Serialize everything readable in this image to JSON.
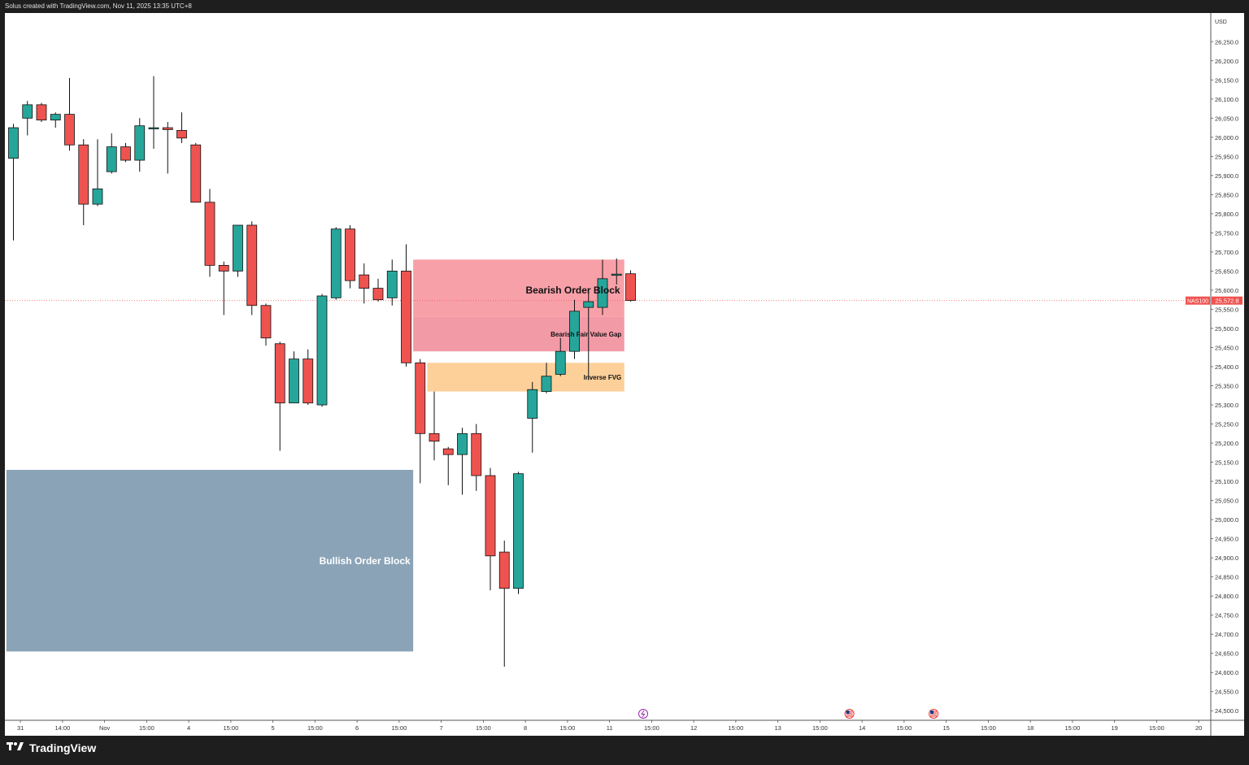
{
  "header": {
    "attribution": "Solus created with TradingView.com, Nov 11, 2025 13:35 UTC+8"
  },
  "footer": {
    "brand": "TradingView",
    "logo_icon": "tradingview-logo-icon"
  },
  "colors": {
    "up": "#26a69a",
    "down": "#ef5350",
    "bearish_ob": "#f8a0a8",
    "bearish_fvg": "#f29aa6",
    "inverse_fvg": "#fdd09a",
    "bullish_ob": "#8aa3b7",
    "last_price": "#ef5350"
  },
  "chart_data": {
    "type": "candlestick",
    "symbol": "NAS100",
    "currency": "USD",
    "last_price": 25572.8,
    "last_price_label": "25,572.8",
    "ylim": [
      24475,
      26325
    ],
    "y_ticks": [
      "24,500.0",
      "24,550.0",
      "24,600.0",
      "24,650.0",
      "24,700.0",
      "24,750.0",
      "24,800.0",
      "24,850.0",
      "24,900.0",
      "24,950.0",
      "25,000.0",
      "25,050.0",
      "25,100.0",
      "25,150.0",
      "25,200.0",
      "25,250.0",
      "25,300.0",
      "25,350.0",
      "25,400.0",
      "25,450.0",
      "25,500.0",
      "25,550.0",
      "25,600.0",
      "25,650.0",
      "25,700.0",
      "25,750.0",
      "25,800.0",
      "25,850.0",
      "25,900.0",
      "25,950.0",
      "26,000.0",
      "26,050.0",
      "26,100.0",
      "26,150.0",
      "26,200.0",
      "26,250.0"
    ],
    "x_ticks": [
      {
        "label": "31",
        "bar": 0.5
      },
      {
        "label": "14:00",
        "bar": 3.5
      },
      {
        "label": "Nov",
        "bar": 6.5
      },
      {
        "label": "15:00",
        "bar": 9.5
      },
      {
        "label": "4",
        "bar": 12.5
      },
      {
        "label": "15:00",
        "bar": 15.5
      },
      {
        "label": "5",
        "bar": 18.5
      },
      {
        "label": "15:00",
        "bar": 21.5
      },
      {
        "label": "6",
        "bar": 24.5
      },
      {
        "label": "15:00",
        "bar": 27.5
      },
      {
        "label": "7",
        "bar": 30.5
      },
      {
        "label": "15:00",
        "bar": 33.5
      },
      {
        "label": "8",
        "bar": 36.5
      },
      {
        "label": "15:00",
        "bar": 39.5
      },
      {
        "label": "11",
        "bar": 42.5
      },
      {
        "label": "15:00",
        "bar": 45.5
      },
      {
        "label": "12",
        "bar": 48.5
      },
      {
        "label": "15:00",
        "bar": 51.5
      },
      {
        "label": "13",
        "bar": 54.5
      },
      {
        "label": "15:00",
        "bar": 57.5
      },
      {
        "label": "14",
        "bar": 60.5
      },
      {
        "label": "15:00",
        "bar": 63.5
      },
      {
        "label": "15",
        "bar": 66.5
      },
      {
        "label": "15:00",
        "bar": 69.5
      },
      {
        "label": "18",
        "bar": 72.5
      },
      {
        "label": "15:00",
        "bar": 75.5
      },
      {
        "label": "19",
        "bar": 78.5
      },
      {
        "label": "15:00",
        "bar": 81.5
      },
      {
        "label": "20",
        "bar": 84.5
      }
    ],
    "candles": [
      {
        "o": 25945,
        "h": 26035,
        "l": 25730,
        "c": 26025
      },
      {
        "o": 26050,
        "h": 26095,
        "l": 26005,
        "c": 26085
      },
      {
        "o": 26085,
        "h": 26090,
        "l": 26040,
        "c": 26045
      },
      {
        "o": 26045,
        "h": 26065,
        "l": 26025,
        "c": 26060
      },
      {
        "o": 26060,
        "h": 26155,
        "l": 25965,
        "c": 25980
      },
      {
        "o": 25980,
        "h": 25995,
        "l": 25770,
        "c": 25825
      },
      {
        "o": 25825,
        "h": 25995,
        "l": 25820,
        "c": 25865
      },
      {
        "o": 25910,
        "h": 26010,
        "l": 25905,
        "c": 25975
      },
      {
        "o": 25975,
        "h": 25985,
        "l": 25935,
        "c": 25940
      },
      {
        "o": 25940,
        "h": 26050,
        "l": 25910,
        "c": 26030
      },
      {
        "o": 26025,
        "h": 26160,
        "l": 25970,
        "c": 26025
      },
      {
        "o": 26025,
        "h": 26040,
        "l": 25905,
        "c": 26020
      },
      {
        "o": 26018,
        "h": 26065,
        "l": 25985,
        "c": 25998
      },
      {
        "o": 25980,
        "h": 25985,
        "l": 25830,
        "c": 25830
      },
      {
        "o": 25830,
        "h": 25865,
        "l": 25635,
        "c": 25665
      },
      {
        "o": 25665,
        "h": 25675,
        "l": 25535,
        "c": 25650
      },
      {
        "o": 25650,
        "h": 25770,
        "l": 25635,
        "c": 25770
      },
      {
        "o": 25770,
        "h": 25780,
        "l": 25535,
        "c": 25560
      },
      {
        "o": 25560,
        "h": 25565,
        "l": 25455,
        "c": 25475
      },
      {
        "o": 25460,
        "h": 25465,
        "l": 25180,
        "c": 25305
      },
      {
        "o": 25305,
        "h": 25440,
        "l": 25305,
        "c": 25420
      },
      {
        "o": 25420,
        "h": 25445,
        "l": 25300,
        "c": 25305
      },
      {
        "o": 25300,
        "h": 25590,
        "l": 25295,
        "c": 25585
      },
      {
        "o": 25580,
        "h": 25765,
        "l": 25575,
        "c": 25760
      },
      {
        "o": 25760,
        "h": 25770,
        "l": 25605,
        "c": 25625
      },
      {
        "o": 25640,
        "h": 25670,
        "l": 25565,
        "c": 25605
      },
      {
        "o": 25605,
        "h": 25630,
        "l": 25570,
        "c": 25575
      },
      {
        "o": 25580,
        "h": 25680,
        "l": 25560,
        "c": 25650
      },
      {
        "o": 25650,
        "h": 25720,
        "l": 25400,
        "c": 25410
      },
      {
        "o": 25410,
        "h": 25420,
        "l": 25095,
        "c": 25225
      },
      {
        "o": 25225,
        "h": 25335,
        "l": 25155,
        "c": 25205
      },
      {
        "o": 25185,
        "h": 25190,
        "l": 25090,
        "c": 25170
      },
      {
        "o": 25170,
        "h": 25240,
        "l": 25065,
        "c": 25225
      },
      {
        "o": 25225,
        "h": 25250,
        "l": 25075,
        "c": 25115
      },
      {
        "o": 25115,
        "h": 25135,
        "l": 24815,
        "c": 24905
      },
      {
        "o": 24915,
        "h": 24945,
        "l": 24615,
        "c": 24820
      },
      {
        "o": 24820,
        "h": 25125,
        "l": 24805,
        "c": 25120
      },
      {
        "o": 25265,
        "h": 25360,
        "l": 25175,
        "c": 25340
      },
      {
        "o": 25335,
        "h": 25410,
        "l": 25330,
        "c": 25375
      },
      {
        "o": 25380,
        "h": 25475,
        "l": 25375,
        "c": 25440
      },
      {
        "o": 25440,
        "h": 25575,
        "l": 25420,
        "c": 25545
      },
      {
        "o": 25555,
        "h": 25595,
        "l": 25365,
        "c": 25570
      },
      {
        "o": 25555,
        "h": 25680,
        "l": 25535,
        "c": 25630
      },
      {
        "o": 25642,
        "h": 25683,
        "l": 25615,
        "c": 25642
      },
      {
        "o": 25643,
        "h": 25652,
        "l": 25570,
        "c": 25573
      }
    ],
    "zones": [
      {
        "label": "Bearish Order Block",
        "x0": 28.5,
        "x1": 43.55,
        "y0": 25530,
        "y1": 25680,
        "color": "bearish_ob"
      },
      {
        "label": "Bearish Fair Value Gap",
        "x0": 28.5,
        "x1": 43.55,
        "y0": 25440,
        "y1": 25530,
        "color": "bearish_fvg"
      },
      {
        "label": "Inverse FVG",
        "x0": 29.5,
        "x1": 43.55,
        "y0": 25335,
        "y1": 25410,
        "color": "inverse_fvg"
      },
      {
        "label": "Bullish Order Block",
        "x0": -0.5,
        "x1": 28.5,
        "y0": 24655,
        "y1": 25130,
        "color": "bullish_ob"
      }
    ],
    "event_markers": [
      {
        "bar": 44.9,
        "icon": "lightning-event-icon",
        "color": "#9c27b0"
      },
      {
        "bar": 59.6,
        "icon": "us-flag-icon",
        "color": "#e53935"
      },
      {
        "bar": 65.6,
        "icon": "us-flag-icon",
        "color": "#e53935"
      }
    ]
  }
}
